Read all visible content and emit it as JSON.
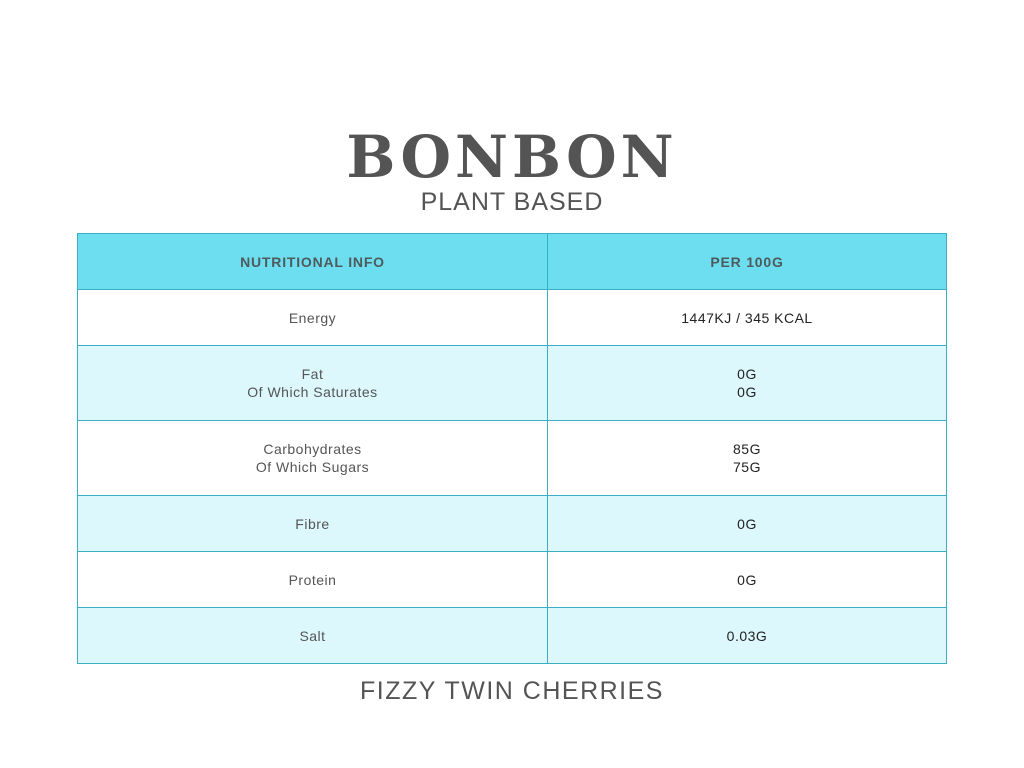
{
  "brand": {
    "name": "BONBON",
    "subtitle": "PLANT BASED"
  },
  "table": {
    "headers": [
      "NUTRITIONAL INFO",
      "PER 100G"
    ],
    "rows": [
      {
        "label": [
          "Energy"
        ],
        "value": [
          "1447KJ / 345 KCAL"
        ]
      },
      {
        "label": [
          "Fat",
          "Of Which Saturates"
        ],
        "value": [
          "0G",
          "0G"
        ]
      },
      {
        "label": [
          "Carbohydrates",
          "Of Which Sugars"
        ],
        "value": [
          "85G",
          "75G"
        ]
      },
      {
        "label": [
          "Fibre"
        ],
        "value": [
          "0G"
        ]
      },
      {
        "label": [
          "Protein"
        ],
        "value": [
          "0G"
        ]
      },
      {
        "label": [
          "Salt"
        ],
        "value": [
          "0.03G"
        ]
      }
    ]
  },
  "footer": {
    "product": "FIZZY TWIN CHERRIES"
  },
  "colors": {
    "header": "#6cdef0",
    "alt_row": "#dcf8fc",
    "border": "#3aaec4",
    "text": "#545454"
  }
}
